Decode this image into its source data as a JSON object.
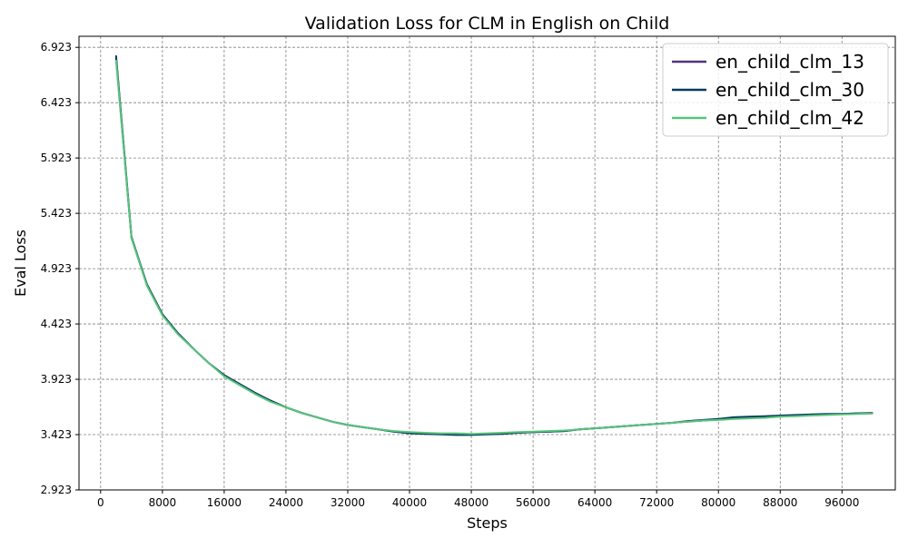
{
  "chart_data": {
    "type": "line",
    "title": "Validation Loss for CLM in English on Child",
    "xlabel": "Steps",
    "ylabel": "Eval Loss",
    "xlim": [
      -2800,
      102900
    ],
    "ylim": [
      2.923,
      7.023
    ],
    "xticks": [
      0,
      8000,
      16000,
      24000,
      32000,
      40000,
      48000,
      56000,
      64000,
      72000,
      80000,
      88000,
      96000
    ],
    "xtick_labels": [
      "0",
      "8000",
      "16000",
      "24000",
      "32000",
      "40000",
      "48000",
      "56000",
      "64000",
      "72000",
      "80000",
      "88000",
      "96000"
    ],
    "yticks": [
      2.923,
      3.423,
      3.923,
      4.423,
      4.923,
      5.423,
      5.923,
      6.423,
      6.923
    ],
    "ytick_labels": [
      "2.923",
      "3.423",
      "3.923",
      "4.423",
      "4.923",
      "5.423",
      "5.923",
      "6.423",
      "6.923"
    ],
    "grid": true,
    "legend_position": "top-right",
    "x": [
      2000,
      4000,
      6000,
      8000,
      10000,
      12000,
      14000,
      16000,
      18000,
      20000,
      22000,
      24000,
      26000,
      28000,
      30000,
      32000,
      34000,
      36000,
      38000,
      40000,
      42000,
      44000,
      46000,
      48000,
      50000,
      52000,
      54000,
      56000,
      58000,
      60000,
      62000,
      64000,
      66000,
      68000,
      70000,
      72000,
      74000,
      76000,
      78000,
      80000,
      82000,
      84000,
      86000,
      88000,
      90000,
      92000,
      94000,
      96000,
      98000,
      100000
    ],
    "series": [
      {
        "name": "en_child_clm_13",
        "color": "#54347f",
        "values": [
          6.83,
          5.2,
          4.78,
          4.51,
          4.34,
          4.2,
          4.07,
          3.96,
          3.88,
          3.8,
          3.73,
          3.67,
          3.62,
          3.58,
          3.54,
          3.51,
          3.49,
          3.47,
          3.45,
          3.44,
          3.435,
          3.43,
          3.43,
          3.425,
          3.43,
          3.435,
          3.44,
          3.445,
          3.45,
          3.455,
          3.47,
          3.48,
          3.49,
          3.5,
          3.51,
          3.52,
          3.53,
          3.54,
          3.55,
          3.56,
          3.57,
          3.575,
          3.58,
          3.59,
          3.595,
          3.6,
          3.605,
          3.61,
          3.615,
          3.62
        ]
      },
      {
        "name": "en_child_clm_30",
        "color": "#043b5c",
        "values": [
          6.85,
          5.21,
          4.78,
          4.51,
          4.34,
          4.2,
          4.07,
          3.96,
          3.88,
          3.8,
          3.73,
          3.67,
          3.62,
          3.58,
          3.54,
          3.51,
          3.49,
          3.47,
          3.45,
          3.435,
          3.43,
          3.425,
          3.42,
          3.42,
          3.425,
          3.43,
          3.44,
          3.445,
          3.45,
          3.455,
          3.47,
          3.48,
          3.49,
          3.5,
          3.51,
          3.52,
          3.53,
          3.545,
          3.555,
          3.565,
          3.58,
          3.585,
          3.59,
          3.595,
          3.6,
          3.605,
          3.61,
          3.61,
          3.615,
          3.615
        ]
      },
      {
        "name": "en_child_clm_42",
        "color": "#57c47a",
        "values": [
          6.81,
          5.2,
          4.77,
          4.5,
          4.33,
          4.2,
          4.07,
          3.95,
          3.87,
          3.79,
          3.72,
          3.67,
          3.62,
          3.58,
          3.54,
          3.51,
          3.49,
          3.47,
          3.455,
          3.445,
          3.44,
          3.435,
          3.435,
          3.43,
          3.435,
          3.44,
          3.445,
          3.45,
          3.455,
          3.46,
          3.47,
          3.48,
          3.49,
          3.5,
          3.51,
          3.52,
          3.53,
          3.54,
          3.55,
          3.555,
          3.565,
          3.57,
          3.575,
          3.585,
          3.59,
          3.595,
          3.6,
          3.605,
          3.61,
          3.615
        ]
      }
    ]
  }
}
